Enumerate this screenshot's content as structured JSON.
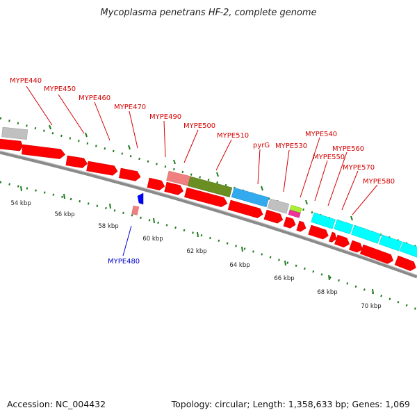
{
  "title": "Mycoplasma penetrans HF-2, complete genome",
  "footer": {
    "accession": "Accession: NC_004432",
    "summary": "Topology: circular; Length: 1,358,633 bp; Genes: 1,069"
  },
  "scale_labels": [
    "54 kbp",
    "56 kbp",
    "58 kbp",
    "60 kbp",
    "62 kbp",
    "64 kbp",
    "66 kbp",
    "68 kbp",
    "70 kbp"
  ],
  "gene_labels_plus": [
    "MYPE440",
    "MYPE450",
    "MYPE460",
    "MYPE470",
    "MYPE490",
    "MYPE500",
    "MYPE510",
    "pyrG",
    "MYPE530",
    "MYPE540",
    "MYPE550",
    "MYPE560",
    "MYPE570",
    "MYPE580"
  ],
  "gene_label_minus": "MYPE480",
  "colors": {
    "cds_red": "#ff0000",
    "backbone": "#888888",
    "tick_green": "#1e7a1e",
    "label_red": "#d40000",
    "label_blue": "#0000cc",
    "cog_grey": "#c0c0c0",
    "cog_salmon": "#f08080",
    "cog_olive": "#6b8e23",
    "cog_blue": "#33aaee",
    "cog_lime": "#aaee33",
    "cog_magenta": "#ee3399",
    "cog_cyan": "#00ffff"
  }
}
